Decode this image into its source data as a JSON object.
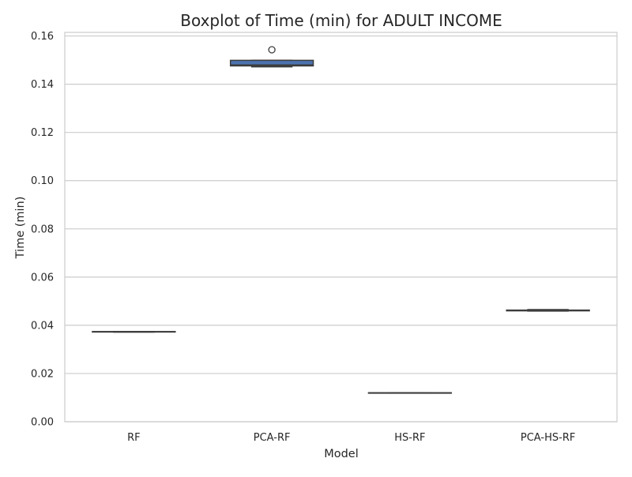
{
  "chart_data": {
    "type": "box",
    "title": "Boxplot of Time (min) for ADULT INCOME",
    "xlabel": "Model",
    "ylabel": "Time (min)",
    "ylim": [
      0,
      0.1615
    ],
    "yticks": [
      "0.00",
      "0.02",
      "0.04",
      "0.06",
      "0.08",
      "0.10",
      "0.12",
      "0.14",
      "0.16"
    ],
    "grid": true,
    "categories": [
      "RF",
      "PCA-RF",
      "HS-RF",
      "PCA-HS-RF"
    ],
    "boxes": [
      {
        "category": "RF",
        "whisker_low": 0.0372,
        "q1": 0.0372,
        "median": 0.0373,
        "q3": 0.0374,
        "whisker_high": 0.0374,
        "outliers": []
      },
      {
        "category": "PCA-RF",
        "whisker_low": 0.1472,
        "q1": 0.1476,
        "median": 0.148,
        "q3": 0.1499,
        "whisker_high": 0.1499,
        "outliers": [
          0.1543
        ]
      },
      {
        "category": "HS-RF",
        "whisker_low": 0.0119,
        "q1": 0.0119,
        "median": 0.012,
        "q3": 0.012,
        "whisker_high": 0.012,
        "outliers": []
      },
      {
        "category": "PCA-HS-RF",
        "whisker_low": 0.0459,
        "q1": 0.046,
        "median": 0.0462,
        "q3": 0.0463,
        "whisker_high": 0.0465,
        "outliers": []
      }
    ],
    "colors": {
      "box_fill": "#4c72b0",
      "box_edge": "#3d3d3d",
      "grid": "#cccccc",
      "frame": "#cccccc"
    }
  }
}
